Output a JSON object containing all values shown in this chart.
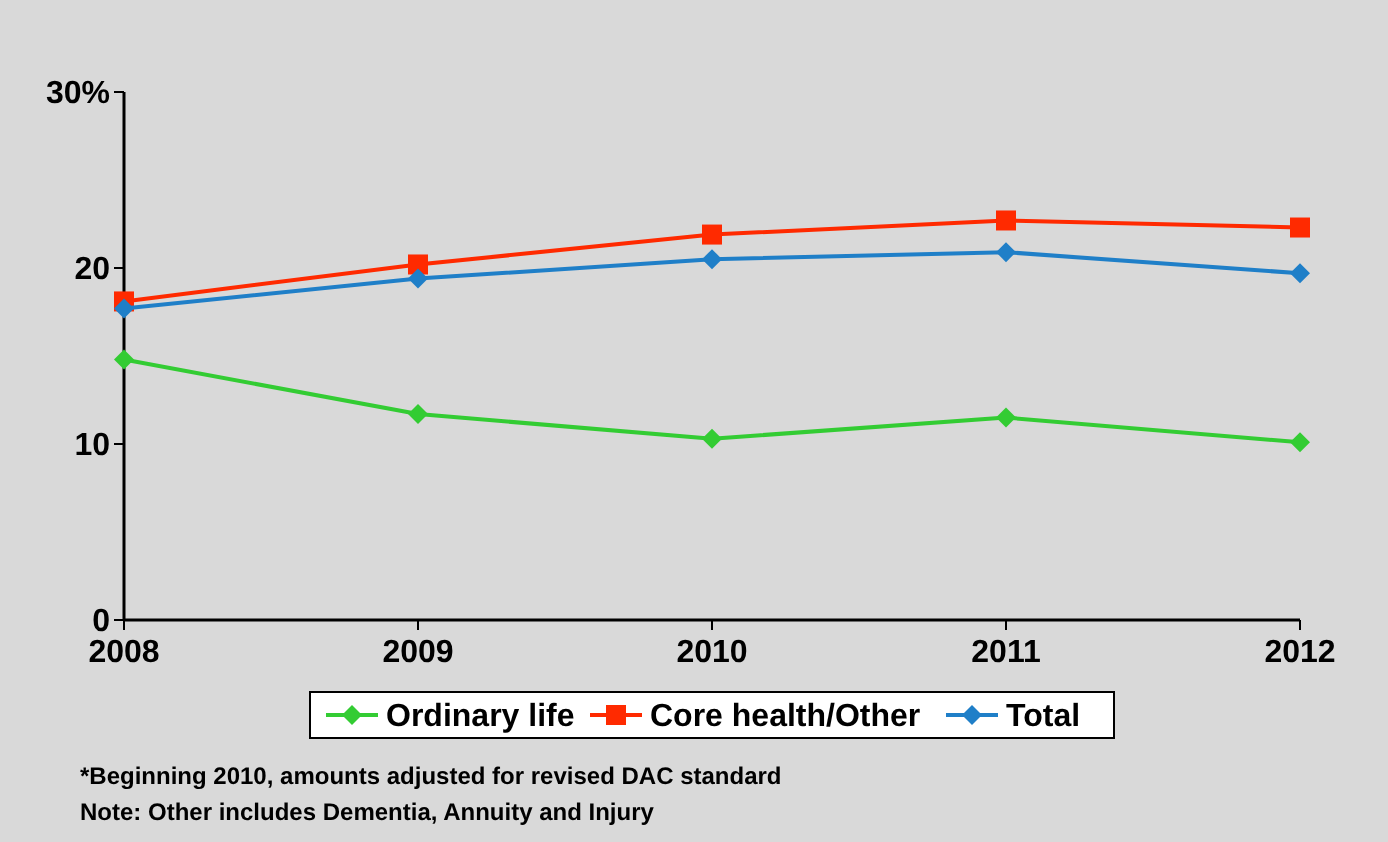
{
  "chart_data": {
    "type": "line",
    "x": [
      2008,
      2009,
      2010,
      2011,
      2012
    ],
    "xlim": [
      2008,
      2012
    ],
    "xticks": [
      2008,
      2009,
      2010,
      2011,
      2012
    ],
    "ylim": [
      0,
      30
    ],
    "yticks": [
      0,
      10,
      20,
      {
        "value": 30,
        "label": "30%"
      }
    ],
    "grid": false,
    "legend": "bottom",
    "series": [
      {
        "name": "Ordinary life",
        "color": "#33cc33",
        "marker": "diamond",
        "values": [
          14.8,
          11.7,
          10.3,
          11.5,
          10.1
        ]
      },
      {
        "name": "Core health/Other",
        "color": "#ff2a00",
        "marker": "square",
        "values": [
          18.1,
          20.2,
          21.9,
          22.7,
          22.3
        ]
      },
      {
        "name": "Total",
        "color": "#1f7fc8",
        "marker": "diamond",
        "values": [
          17.7,
          19.4,
          20.5,
          20.9,
          19.7
        ]
      }
    ],
    "annotations": [
      "*Beginning 2010, amounts adjusted for revised DAC standard",
      "Note: Other includes Dementia, Annuity and Injury"
    ]
  }
}
